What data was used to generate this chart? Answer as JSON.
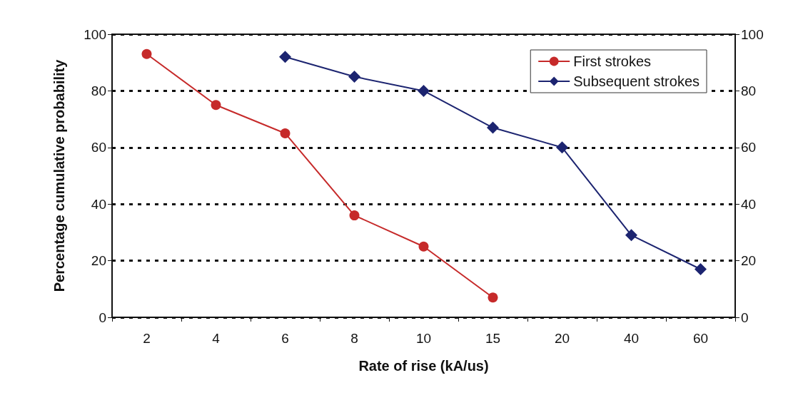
{
  "chart_data": {
    "type": "line",
    "xlabel": "Rate of rise (kA/us)",
    "ylabel": "Percentage cumulative probability",
    "categories": [
      "2",
      "4",
      "6",
      "8",
      "10",
      "15",
      "20",
      "40",
      "60"
    ],
    "series": [
      {
        "name": "First strokes",
        "color": "#c62a2a",
        "marker": "circle",
        "values": [
          93,
          75,
          65,
          36,
          25,
          7,
          null,
          null,
          null
        ]
      },
      {
        "name": "Subsequent strokes",
        "color": "#1c2470",
        "marker": "diamond",
        "values": [
          null,
          null,
          92,
          85,
          80,
          67,
          60,
          29,
          17
        ]
      }
    ],
    "ylim": [
      0,
      100
    ],
    "yticks": [
      0,
      20,
      40,
      60,
      80,
      100
    ],
    "y2lim": [
      0,
      100
    ],
    "y2ticks": [
      0,
      20,
      40,
      60,
      80,
      100
    ],
    "grid": "y",
    "legend": "top right",
    "line_style": "solid"
  }
}
